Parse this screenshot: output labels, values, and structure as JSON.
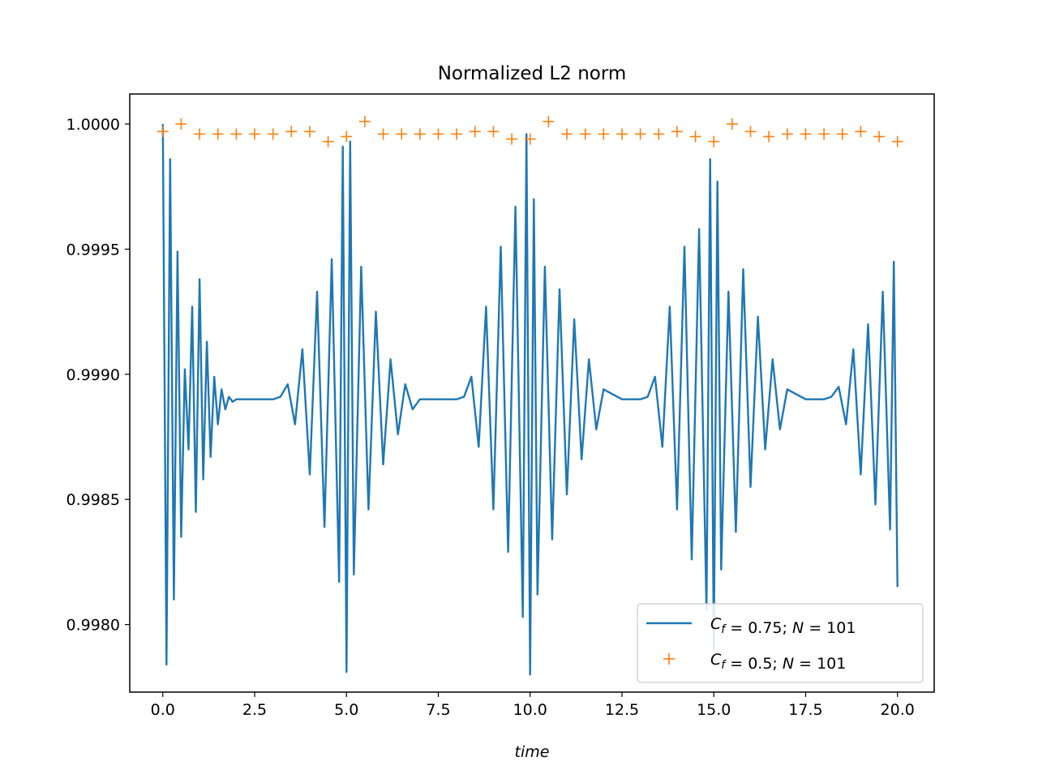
{
  "chart_data": {
    "type": "line",
    "title": "Normalized L2 norm",
    "xlabel": "time",
    "ylabel": "",
    "xlim": [
      -0.9,
      21.0
    ],
    "ylim": [
      0.99773,
      1.00012
    ],
    "xticks": [
      0.0,
      2.5,
      5.0,
      7.5,
      10.0,
      12.5,
      15.0,
      17.5,
      20.0
    ],
    "xtick_labels": [
      "0.0",
      "2.5",
      "5.0",
      "7.5",
      "10.0",
      "12.5",
      "15.0",
      "17.5",
      "20.0"
    ],
    "yticks": [
      0.998,
      0.9985,
      0.999,
      0.9995,
      1.0
    ],
    "ytick_labels": [
      "0.9980",
      "0.9985",
      "0.9990",
      "0.9995",
      "1.0000"
    ],
    "grid": false,
    "legend_position": "bottom-right",
    "series": [
      {
        "name": "C_f = 0.75;  N = 101",
        "legend": {
          "var": "C",
          "sub": "f",
          "text": " = 0.75;  ",
          "var2": "N",
          "text2": " = 101"
        },
        "style": "line",
        "color": "#1f77b4",
        "oscillation": {
          "baseline": 0.9989,
          "period_in_time": 5.0,
          "sample_step": 0.1,
          "note_burst_centers": [
            0.0,
            5.0,
            10.0,
            15.0,
            20.0
          ]
        },
        "x": [
          0.0,
          0.1,
          0.2,
          0.3,
          0.4,
          0.5,
          0.6,
          0.7,
          0.8,
          0.9,
          1.0,
          1.1,
          1.2,
          1.3,
          1.4,
          1.5,
          1.6,
          1.7,
          1.8,
          1.9,
          2.0,
          2.5,
          3.0,
          3.2,
          3.4,
          3.6,
          3.8,
          4.0,
          4.2,
          4.4,
          4.6,
          4.8,
          4.9,
          5.0,
          5.1,
          5.2,
          5.4,
          5.6,
          5.8,
          6.0,
          6.2,
          6.4,
          6.6,
          6.8,
          7.0,
          7.5,
          8.0,
          8.2,
          8.4,
          8.6,
          8.8,
          9.0,
          9.2,
          9.4,
          9.6,
          9.8,
          9.9,
          10.0,
          10.1,
          10.2,
          10.4,
          10.6,
          10.8,
          11.0,
          11.2,
          11.4,
          11.6,
          11.8,
          12.0,
          12.5,
          13.0,
          13.2,
          13.4,
          13.6,
          13.8,
          14.0,
          14.2,
          14.4,
          14.6,
          14.8,
          14.9,
          15.0,
          15.1,
          15.2,
          15.4,
          15.6,
          15.8,
          16.0,
          16.2,
          16.4,
          16.6,
          16.8,
          17.0,
          17.5,
          18.0,
          18.2,
          18.4,
          18.6,
          18.8,
          19.0,
          19.2,
          19.4,
          19.6,
          19.8,
          19.9,
          20.0
        ],
        "y": [
          1.0,
          0.99784,
          0.99986,
          0.9981,
          0.99949,
          0.99835,
          0.99902,
          0.9987,
          0.99927,
          0.99845,
          0.99938,
          0.99858,
          0.99913,
          0.99867,
          0.99899,
          0.9988,
          0.99894,
          0.99886,
          0.99891,
          0.99889,
          0.9989,
          0.9989,
          0.9989,
          0.99891,
          0.99896,
          0.9988,
          0.9991,
          0.9986,
          0.99933,
          0.99839,
          0.99946,
          0.99817,
          0.99991,
          0.99781,
          0.99993,
          0.9982,
          0.99943,
          0.99846,
          0.99925,
          0.99864,
          0.99906,
          0.99876,
          0.99896,
          0.99886,
          0.9989,
          0.9989,
          0.9989,
          0.99891,
          0.99899,
          0.99871,
          0.99927,
          0.99846,
          0.99951,
          0.99829,
          0.99967,
          0.99803,
          0.99996,
          0.9978,
          0.9997,
          0.99812,
          0.99943,
          0.99834,
          0.99934,
          0.99852,
          0.99922,
          0.99866,
          0.99906,
          0.99878,
          0.99894,
          0.9989,
          0.9989,
          0.99891,
          0.99899,
          0.99871,
          0.99927,
          0.99846,
          0.99951,
          0.99826,
          0.99958,
          0.99806,
          0.99986,
          0.9979,
          0.99977,
          0.99822,
          0.99933,
          0.99837,
          0.99942,
          0.99855,
          0.99923,
          0.9987,
          0.99906,
          0.99878,
          0.99894,
          0.9989,
          0.9989,
          0.99891,
          0.99895,
          0.9988,
          0.9991,
          0.9986,
          0.9992,
          0.99848,
          0.99933,
          0.99838,
          0.99945,
          0.99815
        ]
      },
      {
        "name": "C_f = 0.5;  N = 101",
        "legend": {
          "var": "C",
          "sub": "f",
          "text": " = 0.5;  ",
          "var2": "N",
          "text2": " = 101"
        },
        "style": "marker",
        "marker": "+",
        "color": "#ff7f0e",
        "x": [
          0.0,
          0.5,
          1.0,
          1.5,
          2.0,
          2.5,
          3.0,
          3.5,
          4.0,
          4.5,
          5.0,
          5.5,
          6.0,
          6.5,
          7.0,
          7.5,
          8.0,
          8.5,
          9.0,
          9.5,
          10.0,
          10.5,
          11.0,
          11.5,
          12.0,
          12.5,
          13.0,
          13.5,
          14.0,
          14.5,
          15.0,
          15.5,
          16.0,
          16.5,
          17.0,
          17.5,
          18.0,
          18.5,
          19.0,
          19.5,
          20.0
        ],
        "y": [
          0.99997,
          1.0,
          0.99996,
          0.99996,
          0.99996,
          0.99996,
          0.99996,
          0.99997,
          0.99997,
          0.99993,
          0.99995,
          1.00001,
          0.99996,
          0.99996,
          0.99996,
          0.99996,
          0.99996,
          0.99997,
          0.99997,
          0.99994,
          0.99994,
          1.00001,
          0.99996,
          0.99996,
          0.99996,
          0.99996,
          0.99996,
          0.99996,
          0.99997,
          0.99995,
          0.99993,
          1.0,
          0.99997,
          0.99995,
          0.99996,
          0.99996,
          0.99996,
          0.99996,
          0.99997,
          0.99995,
          0.99993
        ]
      }
    ]
  }
}
